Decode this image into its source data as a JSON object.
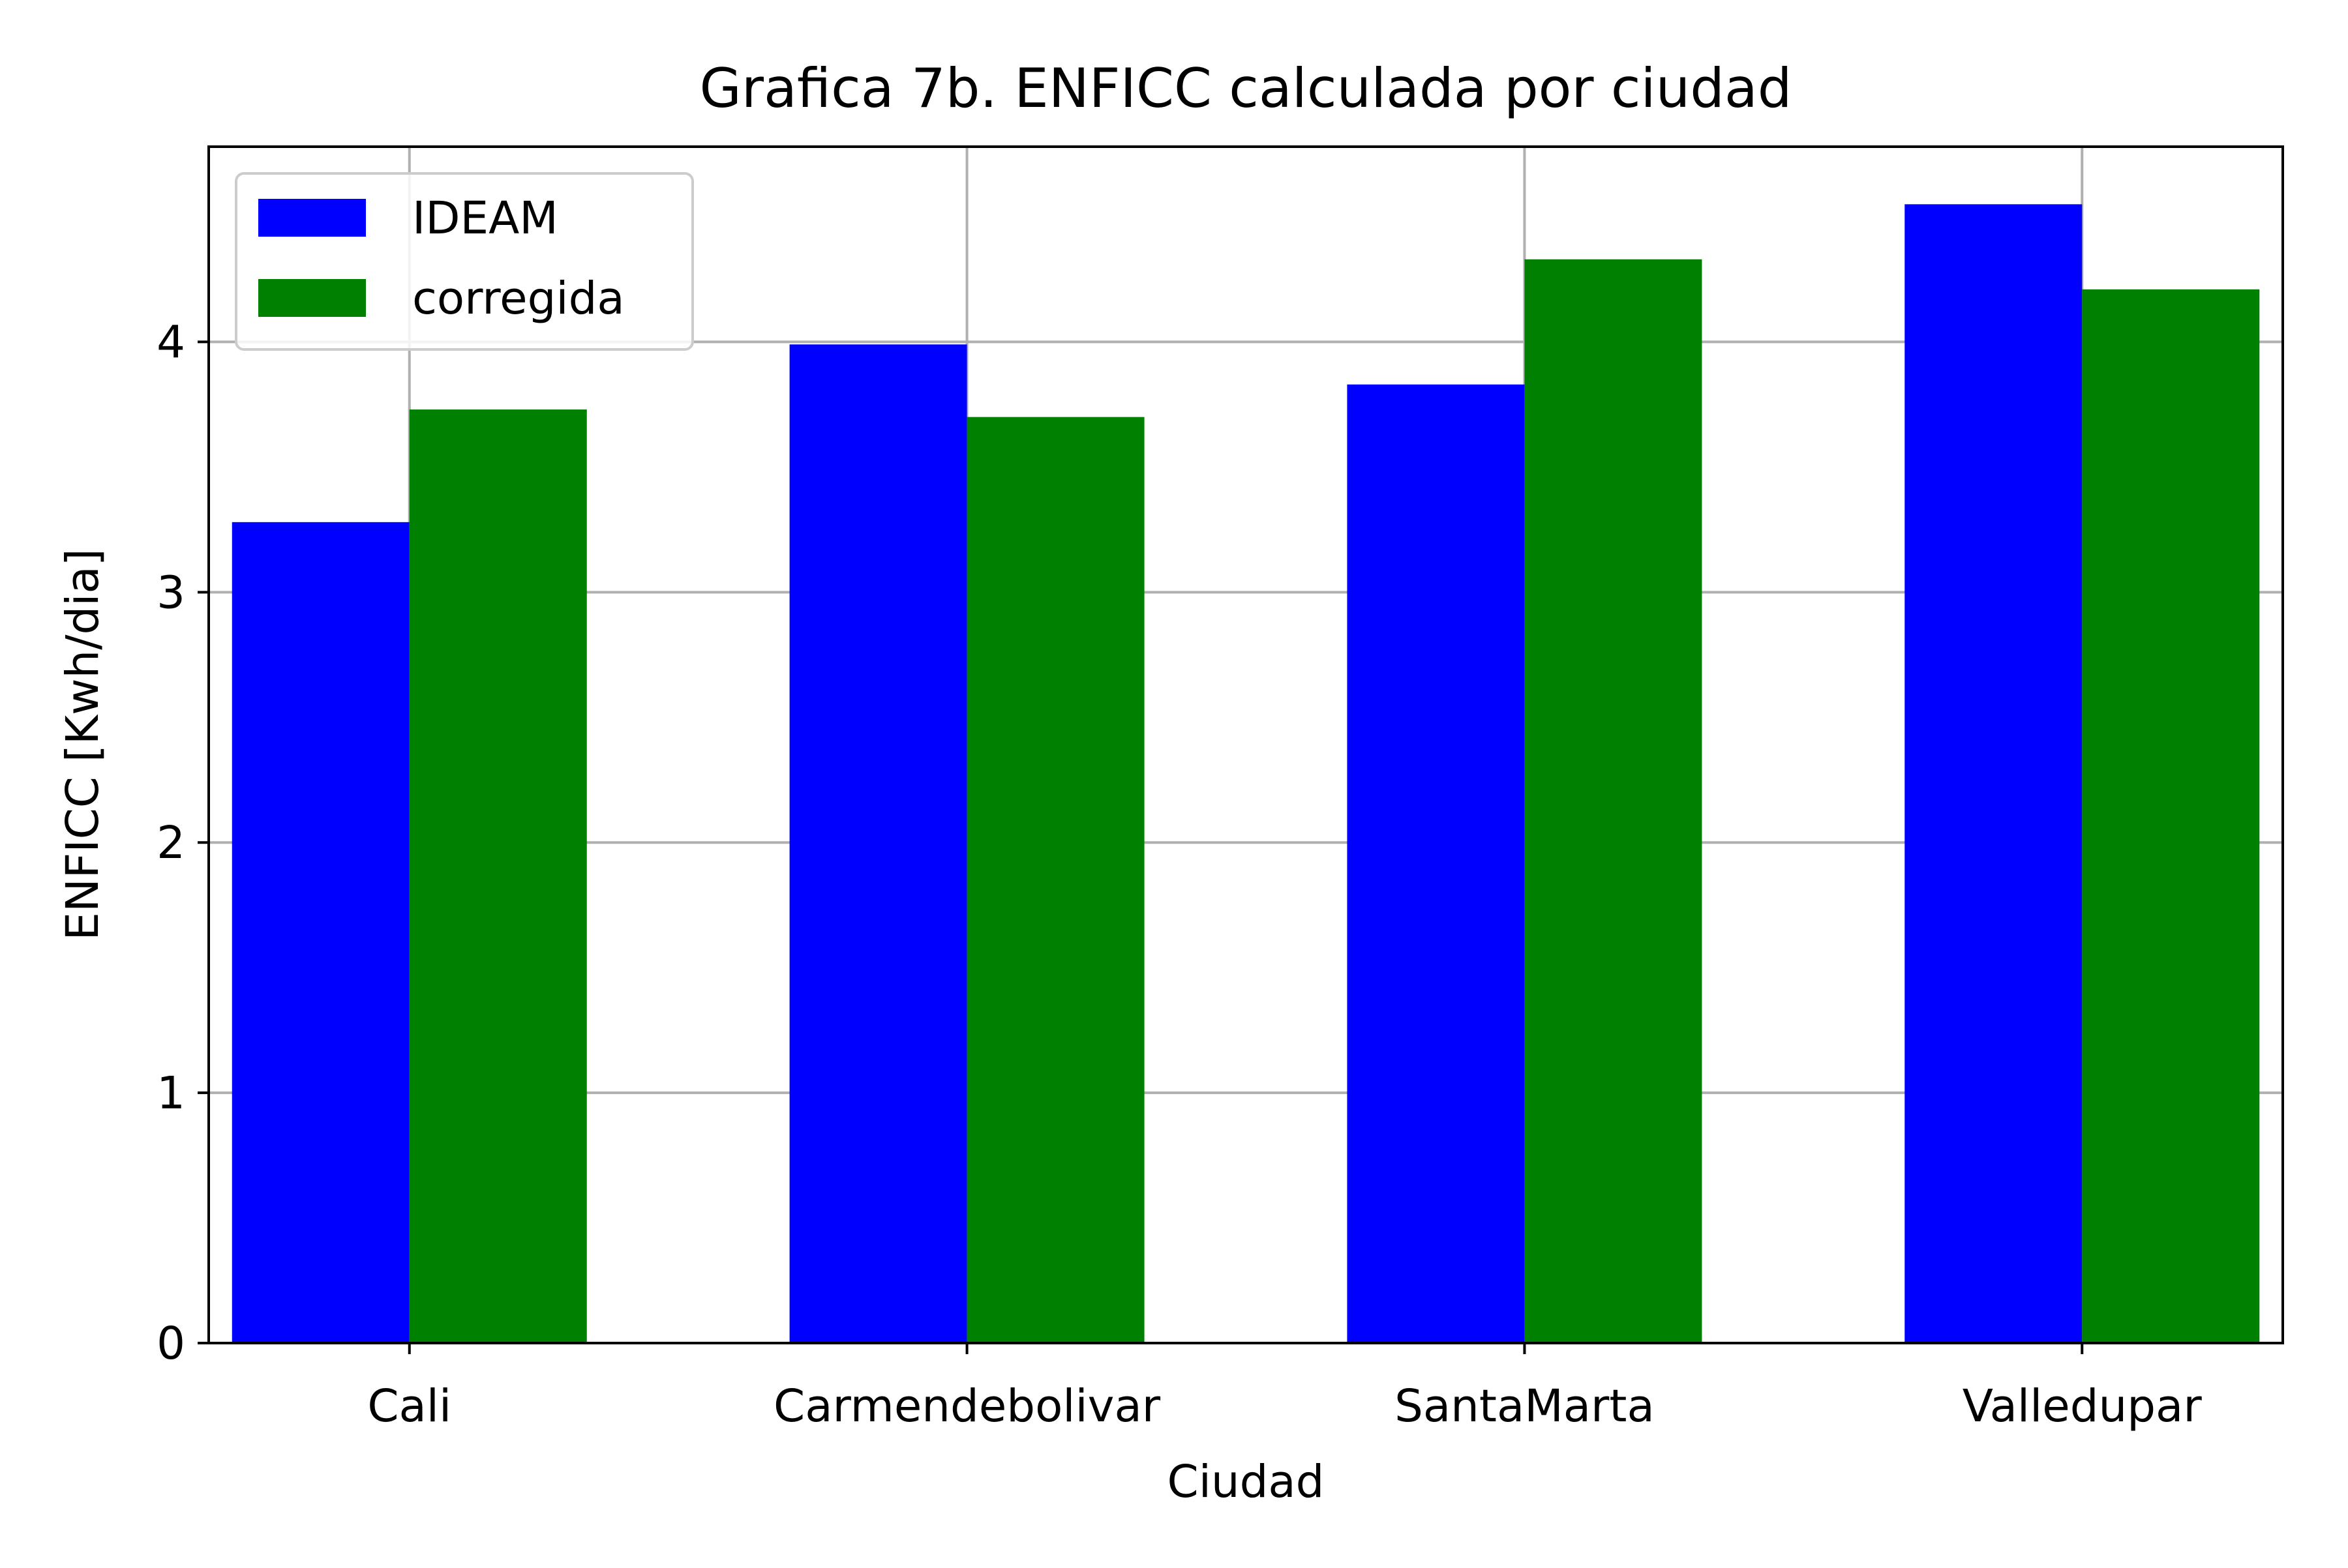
{
  "chart_data": {
    "type": "bar",
    "title": "Grafica 7b. ENFICC calculada por ciudad",
    "xlabel": "Ciudad",
    "ylabel": "ENFICC [Kwh/dia]",
    "categories": [
      "Cali",
      "Carmendebolivar",
      "SantaMarta",
      "Valledupar"
    ],
    "series": [
      {
        "name": "IDEAM",
        "color": "#0000ff",
        "values": [
          3.28,
          3.99,
          3.83,
          4.55
        ]
      },
      {
        "name": "corregida",
        "color": "#008000",
        "values": [
          3.73,
          3.7,
          4.33,
          4.21
        ]
      }
    ],
    "ylim": [
      0,
      4.78
    ],
    "yticks": [
      "0",
      "1",
      "2",
      "3",
      "4"
    ],
    "grid": true,
    "legend_position": "top-left"
  }
}
